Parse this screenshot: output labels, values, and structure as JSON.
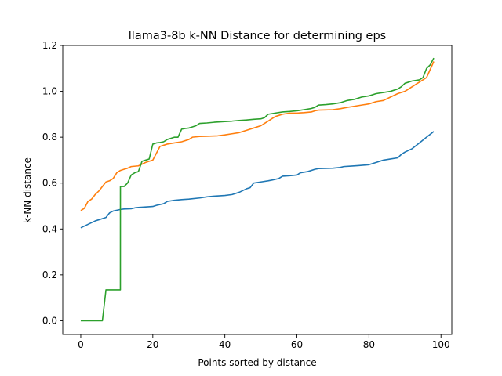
{
  "chart_data": {
    "type": "line",
    "title": "llama3-8b k-NN Distance for determining eps",
    "xlabel": "Points sorted by distance",
    "ylabel": "k-NN distance",
    "xlim": [
      -5,
      103
    ],
    "ylim": [
      -0.06,
      1.2
    ],
    "xticks": [
      0,
      20,
      40,
      60,
      80,
      100
    ],
    "yticks": [
      0.0,
      0.2,
      0.4,
      0.6,
      0.8,
      1.0,
      1.2
    ],
    "grid": false,
    "legend": "none",
    "series": [
      {
        "color": "#1f77b4",
        "x": [
          0,
          2,
          4,
          5,
          7,
          8,
          9,
          11,
          12,
          14,
          15,
          16,
          18,
          20,
          21,
          23,
          24,
          26,
          28,
          30,
          33,
          35,
          37,
          40,
          42,
          44,
          46,
          47,
          48,
          50,
          52,
          53,
          55,
          56,
          58,
          60,
          61,
          63,
          65,
          66,
          68,
          70,
          72,
          73,
          75,
          77,
          80,
          82,
          84,
          86,
          88,
          89,
          90,
          92,
          94,
          96,
          98
        ],
        "y": [
          0.405,
          0.42,
          0.435,
          0.44,
          0.45,
          0.47,
          0.478,
          0.485,
          0.487,
          0.488,
          0.492,
          0.494,
          0.496,
          0.498,
          0.503,
          0.51,
          0.52,
          0.525,
          0.528,
          0.53,
          0.535,
          0.54,
          0.543,
          0.546,
          0.55,
          0.56,
          0.575,
          0.58,
          0.6,
          0.605,
          0.61,
          0.613,
          0.62,
          0.63,
          0.632,
          0.635,
          0.645,
          0.65,
          0.66,
          0.663,
          0.664,
          0.665,
          0.668,
          0.672,
          0.674,
          0.676,
          0.68,
          0.69,
          0.7,
          0.705,
          0.71,
          0.725,
          0.735,
          0.75,
          0.775,
          0.8,
          0.825
        ]
      },
      {
        "color": "#ff7f0e",
        "x": [
          0,
          1,
          2,
          3,
          4,
          5,
          6,
          7,
          8,
          9,
          10,
          11,
          12,
          13,
          14,
          16,
          18,
          19,
          20,
          21,
          22,
          24,
          26,
          28,
          30,
          31,
          33,
          35,
          38,
          40,
          42,
          44,
          46,
          48,
          50,
          51,
          52,
          53,
          54,
          55,
          56,
          58,
          60,
          62,
          64,
          65,
          66,
          68,
          70,
          72,
          74,
          76,
          78,
          80,
          82,
          84,
          86,
          88,
          90,
          92,
          94,
          96,
          98
        ],
        "y": [
          0.48,
          0.49,
          0.52,
          0.53,
          0.55,
          0.565,
          0.585,
          0.605,
          0.61,
          0.62,
          0.645,
          0.655,
          0.66,
          0.665,
          0.672,
          0.675,
          0.69,
          0.695,
          0.7,
          0.73,
          0.76,
          0.77,
          0.775,
          0.78,
          0.79,
          0.8,
          0.803,
          0.804,
          0.806,
          0.81,
          0.815,
          0.82,
          0.83,
          0.84,
          0.85,
          0.86,
          0.87,
          0.88,
          0.89,
          0.895,
          0.9,
          0.905,
          0.905,
          0.907,
          0.91,
          0.915,
          0.918,
          0.919,
          0.92,
          0.924,
          0.93,
          0.935,
          0.94,
          0.945,
          0.955,
          0.96,
          0.975,
          0.99,
          1.0,
          1.02,
          1.04,
          1.06,
          1.13
        ]
      },
      {
        "color": "#2ca02c",
        "x": [
          0,
          3,
          6,
          7,
          10,
          11,
          11.01,
          12,
          13,
          14,
          15,
          16,
          17,
          18,
          19,
          20,
          21,
          22,
          23,
          24,
          25,
          26,
          27,
          28,
          29,
          30,
          31,
          32,
          33,
          35,
          37,
          40,
          42,
          44,
          46,
          48,
          50,
          51,
          52,
          54,
          56,
          58,
          60,
          62,
          64,
          65,
          66,
          68,
          70,
          72,
          74,
          76,
          78,
          80,
          82,
          84,
          86,
          88,
          89,
          90,
          92,
          94,
          95,
          96,
          97,
          98
        ],
        "y": [
          0.0,
          0.0,
          0.0,
          0.135,
          0.135,
          0.135,
          0.585,
          0.585,
          0.6,
          0.635,
          0.645,
          0.65,
          0.695,
          0.7,
          0.705,
          0.77,
          0.775,
          0.777,
          0.78,
          0.79,
          0.795,
          0.8,
          0.8,
          0.835,
          0.838,
          0.84,
          0.845,
          0.85,
          0.86,
          0.862,
          0.865,
          0.868,
          0.87,
          0.873,
          0.875,
          0.878,
          0.88,
          0.885,
          0.9,
          0.905,
          0.91,
          0.912,
          0.915,
          0.92,
          0.925,
          0.93,
          0.94,
          0.942,
          0.945,
          0.95,
          0.96,
          0.965,
          0.975,
          0.98,
          0.99,
          0.995,
          1.0,
          1.01,
          1.02,
          1.035,
          1.045,
          1.05,
          1.06,
          1.1,
          1.115,
          1.145
        ]
      }
    ]
  }
}
